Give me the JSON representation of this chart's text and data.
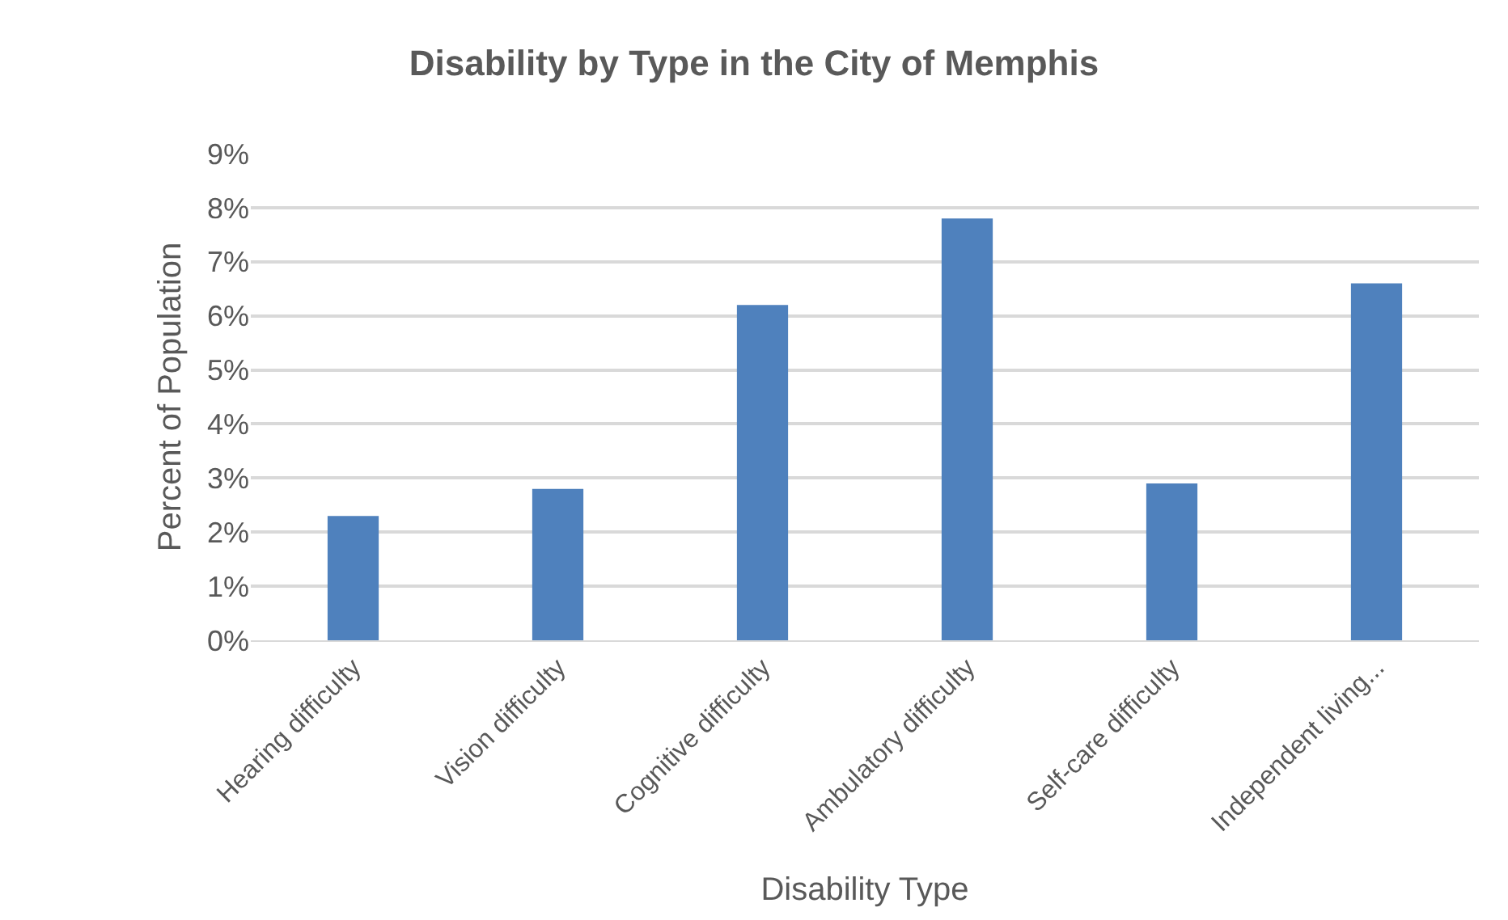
{
  "chart_data": {
    "type": "bar",
    "title": "Disability by Type in the City of Memphis",
    "xlabel": "Disability Type",
    "ylabel": "Percent of Population",
    "categories": [
      "Hearing difficulty",
      "Vision difficulty",
      "Cognitive difficulty",
      "Ambulatory difficulty",
      "Self-care difficulty",
      "Independent living..."
    ],
    "values": [
      2.3,
      2.8,
      6.2,
      7.8,
      2.9,
      6.6
    ],
    "color": "#4f81bd",
    "ylim": [
      0,
      9
    ],
    "yticks": [
      {
        "value": 0,
        "label": "0%"
      },
      {
        "value": 1,
        "label": "1%"
      },
      {
        "value": 2,
        "label": "2%"
      },
      {
        "value": 3,
        "label": "3%"
      },
      {
        "value": 4,
        "label": "4%"
      },
      {
        "value": 5,
        "label": "5%"
      },
      {
        "value": 6,
        "label": "6%"
      },
      {
        "value": 7,
        "label": "7%"
      },
      {
        "value": 8,
        "label": "8%"
      },
      {
        "value": 9,
        "label": "9%"
      }
    ],
    "grid": "y",
    "legend": false
  }
}
